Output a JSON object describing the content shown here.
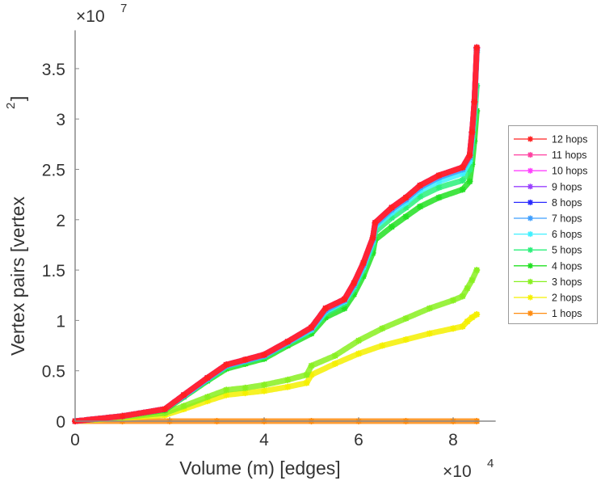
{
  "chart_data": {
    "type": "line",
    "title": "",
    "xlabel": "Volume (m) [edges]",
    "ylabel": "Vertex pairs [vertex",
    "ylabel_superscript": "2",
    "ylabel_close": "]",
    "x_multiplier": {
      "base": "×10",
      "exponent": "4"
    },
    "y_multiplier": {
      "base": "×10",
      "exponent": "7"
    },
    "xlim": [
      0,
      8.9
    ],
    "ylim": [
      0,
      3.88
    ],
    "xticks": [
      0,
      2,
      4,
      6,
      8
    ],
    "xtick_labels": [
      "0",
      "2",
      "4",
      "6",
      "8"
    ],
    "yticks": [
      0,
      0.5,
      1,
      1.5,
      2,
      2.5,
      3,
      3.5
    ],
    "ytick_labels": [
      "0",
      "0.5",
      "1",
      "1.5",
      "2",
      "2.5",
      "3",
      "3.5"
    ],
    "grid": false,
    "legend_position": "right",
    "marker": "asterisk",
    "series": [
      {
        "name": "12 hops",
        "color": "#ff2020",
        "x": [
          0,
          1,
          1.9,
          2.3,
          2.8,
          3.2,
          3.6,
          4,
          4.5,
          5,
          5.3,
          5.7,
          5.9,
          6.1,
          6.3,
          6.35,
          6.7,
          7,
          7.3,
          7.7,
          8.2,
          8.35,
          8.4,
          8.45,
          8.5
        ],
        "y": [
          0,
          0.05,
          0.12,
          0.26,
          0.43,
          0.56,
          0.61,
          0.66,
          0.79,
          0.93,
          1.12,
          1.21,
          1.37,
          1.57,
          1.82,
          1.97,
          2.12,
          2.22,
          2.34,
          2.44,
          2.52,
          2.64,
          2.87,
          3.17,
          3.71
        ]
      },
      {
        "name": "11 hops",
        "color": "#ff3fa0",
        "x": [
          0,
          1,
          1.9,
          2.3,
          2.8,
          3.2,
          3.6,
          4,
          4.5,
          5,
          5.3,
          5.7,
          5.9,
          6.1,
          6.3,
          6.35,
          6.7,
          7,
          7.3,
          7.7,
          8.2,
          8.35,
          8.4,
          8.45,
          8.5
        ],
        "y": [
          0,
          0.05,
          0.12,
          0.26,
          0.43,
          0.56,
          0.61,
          0.66,
          0.79,
          0.93,
          1.12,
          1.21,
          1.37,
          1.57,
          1.82,
          1.97,
          2.12,
          2.22,
          2.34,
          2.44,
          2.52,
          2.64,
          2.87,
          3.17,
          3.71
        ]
      },
      {
        "name": "10 hops",
        "color": "#ff40ff",
        "x": [
          0,
          1,
          1.9,
          2.3,
          2.8,
          3.2,
          3.6,
          4,
          4.5,
          5,
          5.3,
          5.7,
          5.9,
          6.1,
          6.3,
          6.35,
          6.7,
          7,
          7.3,
          7.7,
          8.2,
          8.35,
          8.4,
          8.45,
          8.5
        ],
        "y": [
          0,
          0.05,
          0.12,
          0.26,
          0.43,
          0.56,
          0.61,
          0.66,
          0.79,
          0.93,
          1.12,
          1.21,
          1.37,
          1.57,
          1.82,
          1.97,
          2.12,
          2.22,
          2.34,
          2.44,
          2.52,
          2.64,
          2.87,
          3.17,
          3.71
        ]
      },
      {
        "name": "9 hops",
        "color": "#9a40ff",
        "x": [
          0,
          1,
          1.9,
          2.3,
          2.8,
          3.2,
          3.6,
          4,
          4.5,
          5,
          5.3,
          5.7,
          5.9,
          6.1,
          6.3,
          6.35,
          6.7,
          7,
          7.3,
          7.7,
          8.2,
          8.35,
          8.4,
          8.45,
          8.5
        ],
        "y": [
          0,
          0.05,
          0.12,
          0.26,
          0.43,
          0.56,
          0.61,
          0.66,
          0.79,
          0.93,
          1.12,
          1.21,
          1.37,
          1.57,
          1.82,
          1.97,
          2.12,
          2.22,
          2.34,
          2.44,
          2.52,
          2.64,
          2.87,
          3.17,
          3.71
        ]
      },
      {
        "name": "8 hops",
        "color": "#2a2aff",
        "x": [
          0,
          1,
          1.9,
          2.3,
          2.8,
          3.2,
          3.6,
          4,
          4.5,
          5,
          5.3,
          5.7,
          5.9,
          6.1,
          6.3,
          6.35,
          6.7,
          7,
          7.3,
          7.7,
          8.2,
          8.35,
          8.4,
          8.45,
          8.5
        ],
        "y": [
          0,
          0.05,
          0.12,
          0.26,
          0.43,
          0.56,
          0.61,
          0.66,
          0.79,
          0.93,
          1.12,
          1.21,
          1.37,
          1.57,
          1.82,
          1.97,
          2.12,
          2.22,
          2.34,
          2.44,
          2.52,
          2.64,
          2.87,
          3.17,
          3.7
        ]
      },
      {
        "name": "7 hops",
        "color": "#3f9fff",
        "x": [
          0,
          1,
          1.9,
          2.3,
          2.8,
          3.2,
          3.6,
          4,
          4.5,
          5,
          5.3,
          5.7,
          5.9,
          6.1,
          6.3,
          6.35,
          6.7,
          7,
          7.3,
          7.7,
          8.2,
          8.35,
          8.4,
          8.45,
          8.5
        ],
        "y": [
          0,
          0.05,
          0.12,
          0.25,
          0.42,
          0.55,
          0.6,
          0.65,
          0.78,
          0.92,
          1.1,
          1.2,
          1.35,
          1.55,
          1.8,
          1.95,
          2.1,
          2.2,
          2.32,
          2.42,
          2.5,
          2.62,
          2.85,
          3.15,
          3.68
        ]
      },
      {
        "name": "6 hops",
        "color": "#3ff0ff",
        "x": [
          0,
          1,
          1.9,
          2.3,
          2.8,
          3.2,
          3.6,
          4,
          4.5,
          5,
          5.3,
          5.7,
          5.9,
          6.1,
          6.3,
          6.35,
          6.7,
          7,
          7.3,
          7.7,
          8.2,
          8.35,
          8.4,
          8.45,
          8.5
        ],
        "y": [
          0,
          0.05,
          0.12,
          0.25,
          0.42,
          0.55,
          0.6,
          0.65,
          0.78,
          0.91,
          1.09,
          1.19,
          1.34,
          1.53,
          1.78,
          1.93,
          2.07,
          2.17,
          2.29,
          2.38,
          2.46,
          2.58,
          2.8,
          3.1,
          3.66
        ]
      },
      {
        "name": "5 hops",
        "color": "#2af07a",
        "x": [
          0,
          1,
          1.9,
          2.3,
          2.8,
          3.2,
          3.6,
          4,
          4.5,
          5,
          5.3,
          5.7,
          5.9,
          6.1,
          6.3,
          6.35,
          6.7,
          7,
          7.3,
          7.7,
          8.2,
          8.35,
          8.4,
          8.45,
          8.5
        ],
        "y": [
          0,
          0.05,
          0.12,
          0.25,
          0.41,
          0.54,
          0.59,
          0.64,
          0.77,
          0.9,
          1.07,
          1.17,
          1.31,
          1.5,
          1.74,
          1.88,
          2.02,
          2.12,
          2.23,
          2.32,
          2.39,
          2.5,
          2.72,
          2.98,
          3.33
        ]
      },
      {
        "name": "4 hops",
        "color": "#22e022",
        "x": [
          0,
          1,
          1.9,
          2.3,
          2.8,
          3.2,
          3.6,
          4,
          4.5,
          5,
          5.3,
          5.7,
          5.9,
          6.1,
          6.3,
          6.35,
          6.7,
          7,
          7.3,
          7.7,
          8.2,
          8.35,
          8.4,
          8.45,
          8.5
        ],
        "y": [
          0,
          0.05,
          0.11,
          0.24,
          0.4,
          0.52,
          0.57,
          0.62,
          0.75,
          0.87,
          1.03,
          1.12,
          1.26,
          1.44,
          1.67,
          1.8,
          1.93,
          2.03,
          2.13,
          2.22,
          2.3,
          2.38,
          2.55,
          2.78,
          3.08
        ]
      },
      {
        "name": "3 hops",
        "color": "#88f020",
        "x": [
          0,
          1,
          1.9,
          2.3,
          2.8,
          3.2,
          3.6,
          4,
          4.5,
          4.9,
          5,
          5.5,
          6,
          6.5,
          7,
          7.5,
          8,
          8.2,
          8.3,
          8.4,
          8.5
        ],
        "y": [
          0,
          0.04,
          0.08,
          0.15,
          0.24,
          0.31,
          0.33,
          0.36,
          0.41,
          0.46,
          0.55,
          0.65,
          0.8,
          0.92,
          1.02,
          1.12,
          1.2,
          1.24,
          1.32,
          1.4,
          1.5
        ]
      },
      {
        "name": "2 hops",
        "color": "#f5f000",
        "x": [
          0,
          1,
          1.9,
          2.3,
          2.8,
          3.2,
          3.6,
          4,
          4.5,
          4.9,
          5,
          5.5,
          6,
          6.5,
          7,
          7.5,
          8,
          8.2,
          8.3,
          8.4,
          8.5
        ],
        "y": [
          0,
          0.03,
          0.06,
          0.12,
          0.2,
          0.26,
          0.28,
          0.3,
          0.34,
          0.38,
          0.46,
          0.57,
          0.67,
          0.75,
          0.81,
          0.87,
          0.92,
          0.94,
          0.99,
          1.03,
          1.06
        ]
      },
      {
        "name": "1 hops",
        "color": "#ff8c10",
        "x": [
          0,
          1,
          2,
          3,
          4,
          5,
          6,
          7,
          8,
          8.5
        ],
        "y": [
          0,
          0,
          0,
          0,
          0,
          0,
          0,
          0,
          0,
          0
        ]
      }
    ]
  }
}
